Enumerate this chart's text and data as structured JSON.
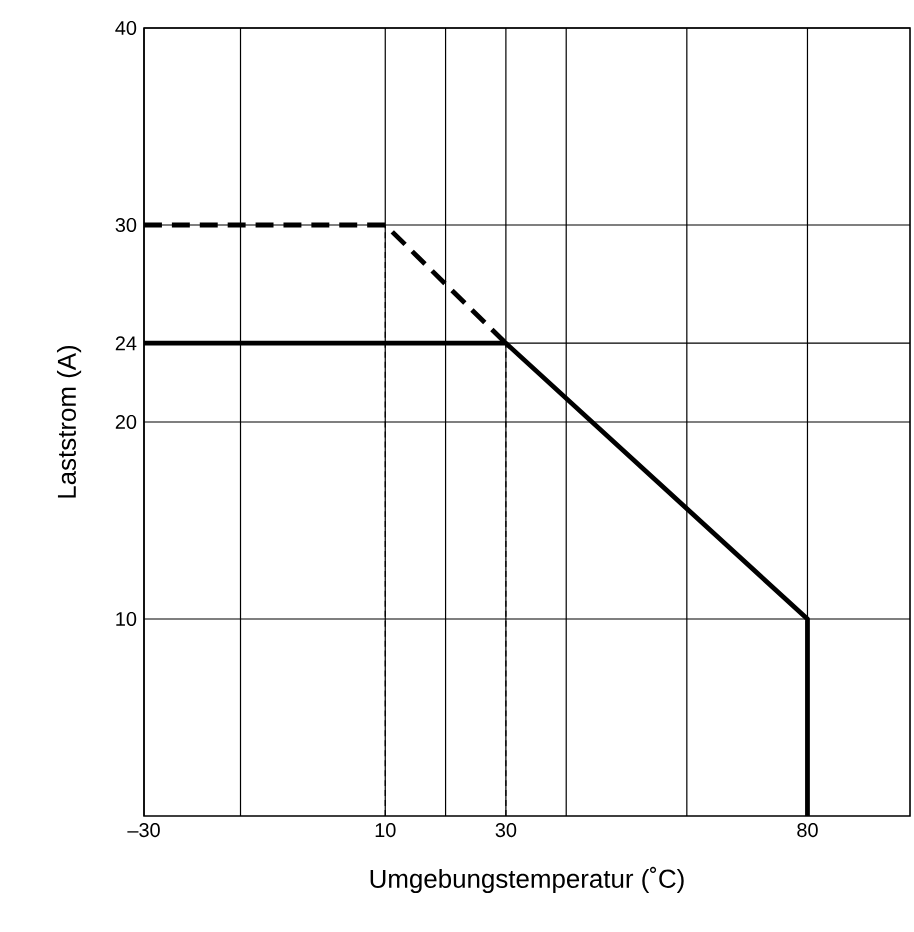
{
  "chart_data": {
    "type": "line",
    "xlabel": "Umgebungstemperatur (˚C)",
    "ylabel": "Laststrom (A)",
    "xlim": [
      -30,
      97
    ],
    "ylim": [
      0,
      40
    ],
    "xticks": [
      {
        "value": -30,
        "label": "–30"
      },
      {
        "value": -14,
        "label": null
      },
      10,
      {
        "value": 20,
        "label": null
      },
      30,
      {
        "value": 40,
        "label": null
      },
      {
        "value": 60,
        "label": null
      },
      80
    ],
    "yticks": [
      10,
      20,
      24,
      30,
      40
    ],
    "grid": true,
    "marker": "none",
    "series": [
      {
        "color": "#000000",
        "line_style": "dashed",
        "x": [
          -30,
          10,
          30
        ],
        "values": [
          30,
          30,
          24
        ]
      },
      {
        "color": "#000000",
        "line_style": "solid",
        "x": [
          -30,
          30,
          80,
          80
        ],
        "values": [
          24,
          24,
          10,
          0
        ]
      },
      {
        "color": "#000000",
        "line_style": "dashed",
        "x": [
          10,
          10
        ],
        "values": [
          0,
          30
        ]
      },
      {
        "color": "#000000",
        "line_style": "dashed",
        "x": [
          30,
          30
        ],
        "values": [
          0,
          24
        ]
      }
    ]
  }
}
